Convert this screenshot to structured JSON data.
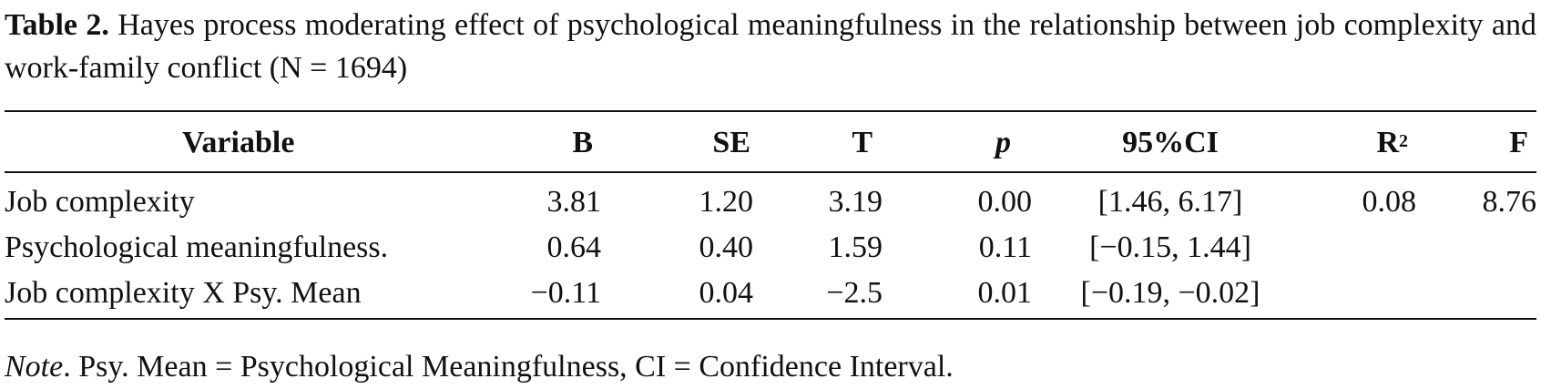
{
  "caption": {
    "label": "Table 2.",
    "text": "Hayes process moderating effect of psychological meaningfulness in the relationship between job complexity and work-family conflict (N = 1694)"
  },
  "table": {
    "headers": {
      "variable": "Variable",
      "b": "B",
      "se": "SE",
      "t": "T",
      "p": "p",
      "ci": "95%CI",
      "r2_base": "R",
      "r2_sup": "2",
      "f": "F"
    },
    "rows": [
      {
        "variable": "Job complexity",
        "b": "3.81",
        "se": "1.20",
        "t": "3.19",
        "p": "0.00",
        "ci": "[1.46, 6.17]",
        "r2": "0.08",
        "f": "8.76"
      },
      {
        "variable": "Psychological meaningfulness.",
        "b": "0.64",
        "se": "0.40",
        "t": "1.59",
        "p": "0.11",
        "ci": "[−0.15, 1.44]",
        "r2": "",
        "f": ""
      },
      {
        "variable": "Job complexity X Psy. Mean",
        "b": "−0.11",
        "se": "0.04",
        "t": "−2.5",
        "p": "0.01",
        "ci": "[−0.19, −0.02]",
        "r2": "",
        "f": ""
      }
    ]
  },
  "note": {
    "label": "Note",
    "text": ". Psy. Mean = Psychological Meaningfulness, CI = Confidence Interval."
  }
}
